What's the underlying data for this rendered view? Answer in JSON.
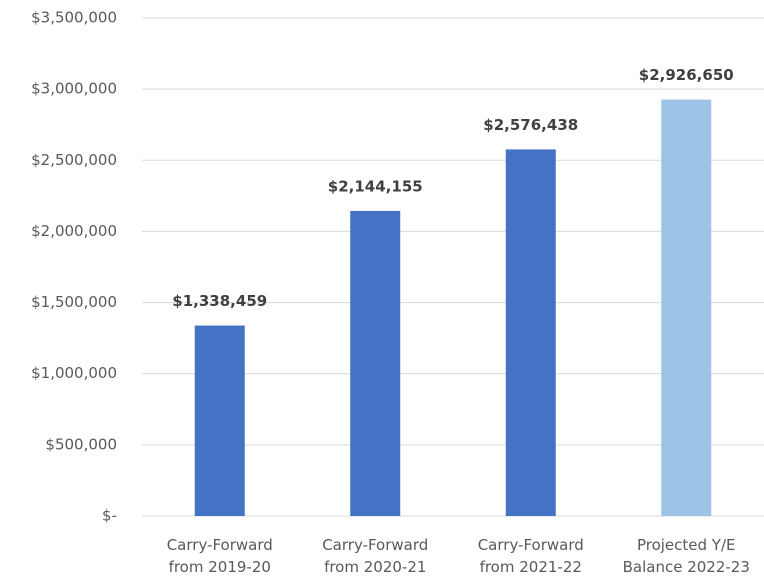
{
  "chart_data": {
    "type": "bar",
    "categories": [
      "Carry-Forward from 2019-20",
      "Carry-Forward from 2020-21",
      "Carry-Forward from 2021-22",
      "Projected Y/E Balance 2022-23"
    ],
    "values": [
      1338459,
      2144155,
      2576438,
      2926650
    ],
    "value_labels": [
      "$1,338,459",
      "$2,144,155",
      "$2,576,438",
      "$2,926,650"
    ],
    "colors": [
      "#4472c4",
      "#4472c4",
      "#4472c4",
      "#9dc3e6"
    ],
    "ylim": [
      0,
      3500000
    ],
    "yticks": [
      {
        "value": 0,
        "label": "$-"
      },
      {
        "value": 500000,
        "label": "$500,000"
      },
      {
        "value": 1000000,
        "label": "$1,000,000"
      },
      {
        "value": 1500000,
        "label": "$1,500,000"
      },
      {
        "value": 2000000,
        "label": "$2,000,000"
      },
      {
        "value": 2500000,
        "label": "$2,500,000"
      },
      {
        "value": 3000000,
        "label": "$3,000,000"
      },
      {
        "value": 3500000,
        "label": "$3,500,000"
      }
    ],
    "grid": true
  }
}
